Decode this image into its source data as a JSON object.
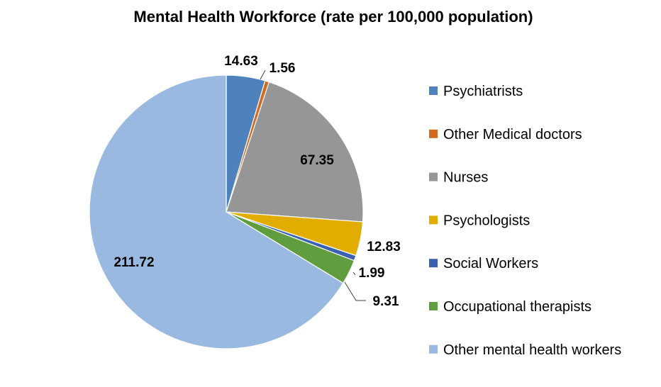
{
  "chart_data": {
    "type": "pie",
    "title": "Mental Health Workforce (rate per 100,000 population)",
    "legend_position": "right",
    "slices": [
      {
        "name": "Psychiatrists",
        "value": 14.63,
        "label": "14.63",
        "color": "#4f81bd"
      },
      {
        "name": "Other Medical doctors",
        "value": 1.56,
        "label": "1.56",
        "color": "#d2691e"
      },
      {
        "name": "Nurses",
        "value": 67.35,
        "label": "67.35",
        "color": "#969696"
      },
      {
        "name": "Psychologists",
        "value": 12.83,
        "label": "12.83",
        "color": "#e0ad00"
      },
      {
        "name": "Social Workers",
        "value": 1.99,
        "label": "1.99",
        "color": "#3a62b0"
      },
      {
        "name": "Occupational therapists",
        "value": 9.31,
        "label": "9.31",
        "color": "#5f9d3e"
      },
      {
        "name": "Other mental health workers",
        "value": 211.72,
        "label": "211.72",
        "color": "#9ab9e0"
      }
    ]
  }
}
